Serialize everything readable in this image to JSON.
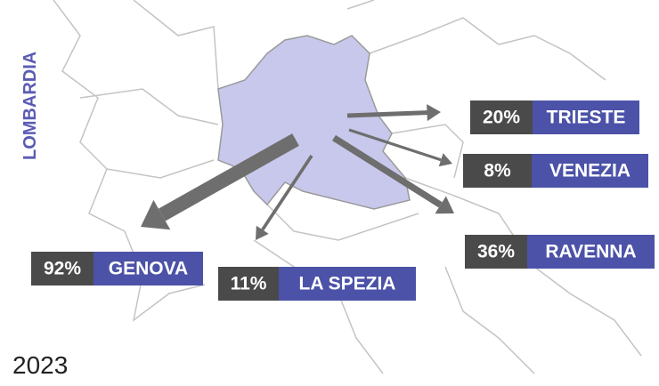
{
  "region": "LOMBARDIA",
  "year": "2023",
  "flows": [
    {
      "port": "TRIESTE",
      "share": 20,
      "share_label": "20%"
    },
    {
      "port": "VENEZIA",
      "share": 8,
      "share_label": "8%"
    },
    {
      "port": "RAVENNA",
      "share": 36,
      "share_label": "36%"
    },
    {
      "port": "GENOVA",
      "share": 92,
      "share_label": "92%"
    },
    {
      "port": "LA SPEZIA",
      "share": 11,
      "share_label": "11%"
    }
  ]
}
